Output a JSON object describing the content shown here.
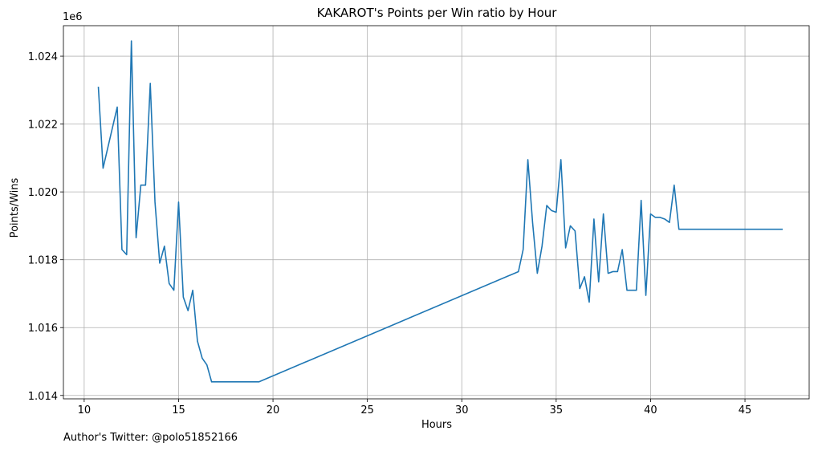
{
  "footnote": "Author's Twitter: @polo51852166",
  "chart_data": {
    "type": "line",
    "title": "KAKAROT's Points per Win ratio by Hour",
    "xlabel": "Hours",
    "ylabel": "Points/Wins",
    "offset_label": "1e6",
    "xlim": [
      8.9,
      48.4
    ],
    "ylim": [
      1013.9,
      1024.9
    ],
    "xticks": [
      10,
      15,
      20,
      25,
      30,
      35,
      40,
      45
    ],
    "xtick_labels": [
      "10",
      "15",
      "20",
      "25",
      "30",
      "35",
      "40",
      "45"
    ],
    "yticks": [
      1014,
      1016,
      1018,
      1020,
      1022,
      1024
    ],
    "ytick_labels": [
      "1.014",
      "1.016",
      "1.018",
      "1.020",
      "1.022",
      "1.024"
    ],
    "grid": true,
    "line_color": "#1f77b4",
    "series": [
      {
        "x": [
          10.75,
          11.0,
          11.75,
          12.0,
          12.25,
          12.5,
          12.75,
          13.0,
          13.25,
          13.5,
          13.75,
          14.0,
          14.25,
          14.5,
          14.75,
          15.0,
          15.25,
          15.5,
          15.75,
          16.0,
          16.25,
          16.5,
          16.75,
          19.25,
          33.0,
          33.25,
          33.5,
          33.75,
          34.0,
          34.25,
          34.5,
          34.75,
          35.0,
          35.25,
          35.5,
          35.75,
          36.0,
          36.25,
          36.5,
          36.75,
          37.0,
          37.25,
          37.5,
          37.75,
          38.0,
          38.25,
          38.5,
          38.75,
          39.0,
          39.25,
          39.5,
          39.75,
          40.0,
          40.25,
          40.5,
          40.75,
          41.0,
          41.25,
          41.5,
          47.0
        ],
        "y": [
          1023.1,
          1020.7,
          1022.5,
          1018.3,
          1018.15,
          1024.45,
          1018.65,
          1020.2,
          1020.2,
          1023.2,
          1019.7,
          1017.9,
          1018.4,
          1017.3,
          1017.1,
          1019.7,
          1016.9,
          1016.5,
          1017.1,
          1015.6,
          1015.1,
          1014.9,
          1014.4,
          1014.4,
          1017.65,
          1018.3,
          1020.95,
          1019.1,
          1017.6,
          1018.4,
          1019.6,
          1019.45,
          1019.4,
          1020.95,
          1018.35,
          1019.0,
          1018.85,
          1017.15,
          1017.5,
          1016.75,
          1019.2,
          1017.35,
          1019.35,
          1017.6,
          1017.65,
          1017.65,
          1018.3,
          1017.1,
          1017.1,
          1017.1,
          1019.75,
          1016.95,
          1019.35,
          1019.25,
          1019.25,
          1019.2,
          1019.1,
          1020.2,
          1018.9,
          1018.9
        ]
      }
    ]
  }
}
